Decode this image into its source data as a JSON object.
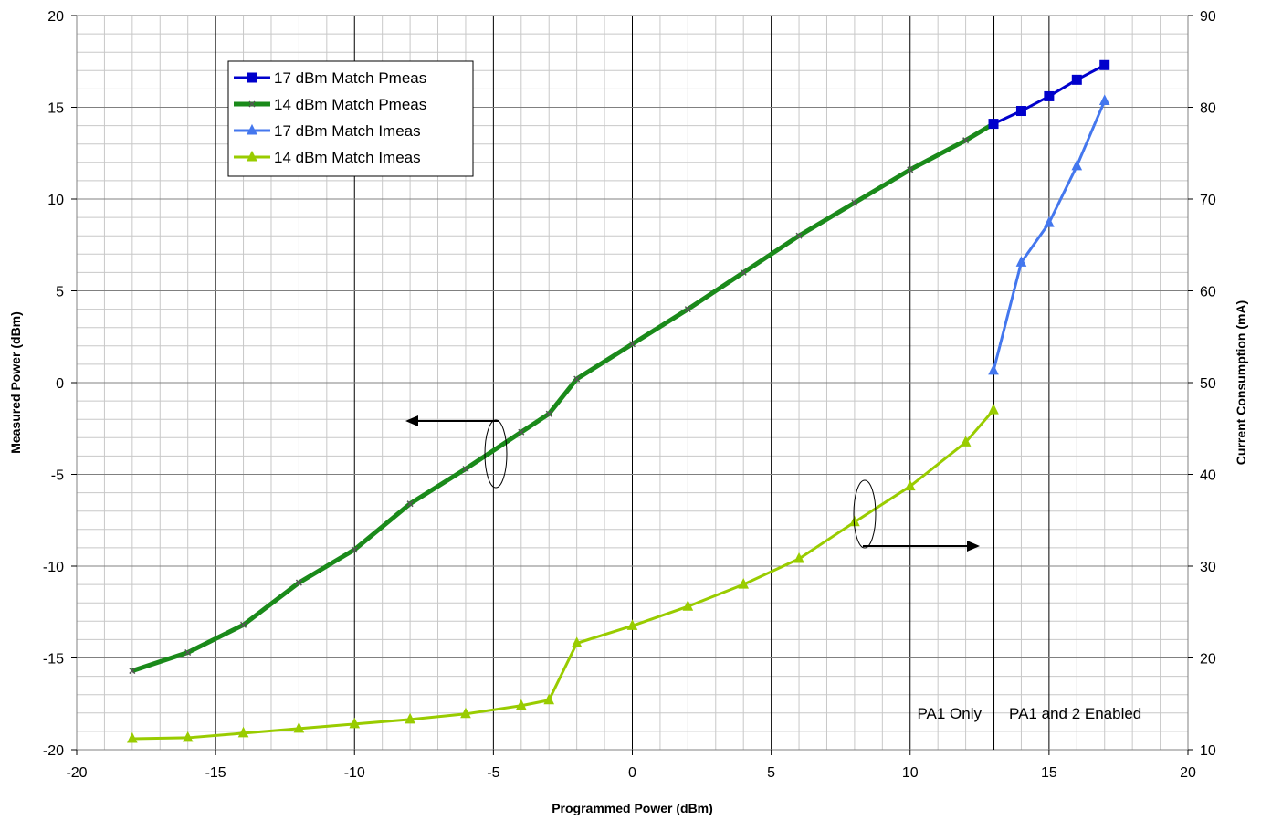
{
  "chart_data": {
    "type": "line",
    "xlabel": "Programmed Power (dBm)",
    "ylabel": "Measured Power (dBm)",
    "y2label": "Current Consumption (mA)",
    "xlim": [
      -20,
      20
    ],
    "ylim": [
      -20,
      20
    ],
    "y2lim": [
      10,
      90
    ],
    "x_ticks": [
      -20,
      -15,
      -10,
      -5,
      0,
      5,
      10,
      15,
      20
    ],
    "y_ticks": [
      -20,
      -15,
      -10,
      -5,
      0,
      5,
      10,
      15,
      20
    ],
    "y2_ticks": [
      10,
      20,
      30,
      40,
      50,
      60,
      70,
      80,
      90
    ],
    "grid": true,
    "legend_position": "top-left",
    "series": [
      {
        "name": "17 dBm Match Pmeas",
        "axis": "left",
        "color": "#0000cc",
        "marker": "square",
        "x": [
          13,
          14,
          15,
          16,
          17
        ],
        "y": [
          14.1,
          14.8,
          15.6,
          16.5,
          17.3
        ]
      },
      {
        "name": "14 dBm Match Pmeas",
        "axis": "left",
        "color": "#1a8a1a",
        "marker": "star",
        "x": [
          -18,
          -16,
          -14,
          -12,
          -10,
          -8,
          -6,
          -4,
          -3,
          -2,
          0,
          2,
          4,
          6,
          8,
          10,
          12,
          13
        ],
        "y": [
          -15.7,
          -14.7,
          -13.2,
          -10.9,
          -9.1,
          -6.6,
          -4.7,
          -2.7,
          -1.7,
          0.2,
          2.1,
          4.0,
          6.0,
          8.0,
          9.8,
          11.6,
          13.2,
          14.1
        ]
      },
      {
        "name": "17 dBm Match Imeas",
        "axis": "right",
        "color": "#4477ee",
        "marker": "triangle",
        "x": [
          13,
          14,
          15,
          16,
          17
        ],
        "y": [
          51.3,
          63.1,
          67.4,
          73.6,
          80.7
        ]
      },
      {
        "name": "14 dBm Match Imeas",
        "axis": "right",
        "color": "#99cc00",
        "marker": "triangle",
        "x": [
          -18,
          -16,
          -14,
          -12,
          -10,
          -8,
          -6,
          -4,
          -3,
          -2,
          0,
          2,
          4,
          6,
          8,
          10,
          12,
          13
        ],
        "y": [
          11.2,
          11.3,
          11.8,
          12.3,
          12.8,
          13.3,
          13.9,
          14.8,
          15.4,
          21.6,
          23.5,
          25.6,
          28.0,
          30.8,
          34.8,
          38.7,
          43.5,
          47.0
        ]
      }
    ],
    "divider_x": 13,
    "annotations": [
      "PA1 Only",
      "PA1 and 2 Enabled"
    ]
  }
}
